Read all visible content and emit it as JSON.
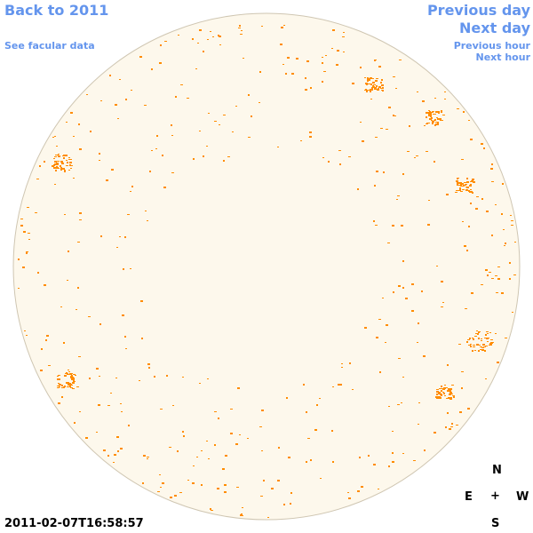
{
  "nav": {
    "back_year": "Back to 2011",
    "see_facular": "See facular data",
    "previous_day": "Previous day",
    "next_day": "Next day",
    "previous_hour": "Previous hour",
    "next_hour": "Next hour"
  },
  "compass": {
    "north": "N",
    "south": "S",
    "east": "E",
    "west": "W",
    "center": "+"
  },
  "timestamp": "2011-02-07T16:58:57",
  "colors": {
    "link": "#6495ed",
    "disk_fill": "#fdf8ec",
    "disk_border": "#cfc6b2",
    "facula": "#ff8c00"
  }
}
